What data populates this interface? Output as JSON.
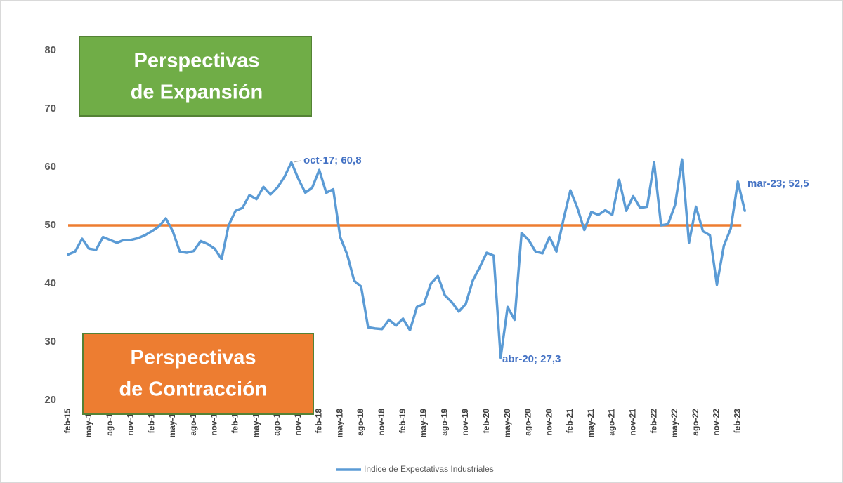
{
  "chart_data": {
    "type": "line",
    "categories": [
      "feb-15",
      null,
      null,
      "may-15",
      null,
      null,
      "ago-15",
      null,
      null,
      "nov-15",
      null,
      null,
      "feb-16",
      null,
      null,
      "may-16",
      null,
      null,
      "ago-16",
      null,
      null,
      "nov-16",
      null,
      null,
      "feb-17",
      null,
      null,
      "may-17",
      null,
      null,
      "ago-17",
      null,
      null,
      "nov-17",
      null,
      null,
      "feb-18",
      null,
      null,
      "may-18",
      null,
      null,
      "ago-18",
      null,
      null,
      "nov-18",
      null,
      null,
      "feb-19",
      null,
      null,
      "may-19",
      null,
      null,
      "ago-19",
      null,
      null,
      "nov-19",
      null,
      null,
      "feb-20",
      null,
      null,
      "may-20",
      null,
      null,
      "ago-20",
      null,
      null,
      "nov-20",
      null,
      null,
      "feb-21",
      null,
      null,
      "may-21",
      null,
      null,
      "ago-21",
      null,
      null,
      "nov-21",
      null,
      null,
      "feb-22",
      null,
      null,
      "may-22",
      null,
      null,
      "ago-22",
      null,
      null,
      "nov-22",
      null,
      null,
      "feb-23",
      null
    ],
    "series": [
      {
        "name": "Indice de Expectativas Industriales",
        "color": "#5B9BD5",
        "values": [
          45,
          45.5,
          47.7,
          46,
          45.8,
          48,
          47.5,
          47,
          47.5,
          47.5,
          47.8,
          48.3,
          49,
          49.8,
          51.2,
          49,
          45.5,
          45.3,
          45.6,
          47.3,
          46.8,
          46,
          44.2,
          50,
          52.5,
          53,
          55.2,
          54.5,
          56.6,
          55.3,
          56.5,
          58.3,
          60.8,
          58,
          55.6,
          56.5,
          59.5,
          55.6,
          56.2,
          48,
          45,
          40.5,
          39.5,
          32.5,
          32.3,
          32.2,
          33.8,
          32.8,
          34,
          32,
          36,
          36.5,
          40,
          41.3,
          38,
          36.8,
          35.2,
          36.5,
          40.5,
          42.8,
          45.3,
          44.8,
          27.3,
          36,
          33.8,
          48.7,
          47.5,
          45.5,
          45.2,
          48,
          45.5,
          51,
          56,
          53,
          49.2,
          52.3,
          51.8,
          52.6,
          51.8,
          57.8,
          52.5,
          55,
          53,
          53.2,
          60.8,
          50,
          50.2,
          53.5,
          61.3,
          47,
          53.2,
          49,
          48.3,
          39.8,
          46.5,
          49.5,
          57.5,
          52.5
        ]
      }
    ],
    "reference_line": {
      "value": 50,
      "color": "#ED7D31"
    },
    "ylim": [
      20,
      80
    ],
    "yticks": [
      20,
      30,
      40,
      50,
      60,
      70,
      80
    ],
    "grid": false,
    "annotations": [
      "oct-17; 60,8",
      "abr-20; 27,3",
      "mar-23; 52,5"
    ],
    "boxes": [
      {
        "lines": [
          "Perspectivas",
          "de Expansión"
        ],
        "color": "#70AD47"
      },
      {
        "lines": [
          "Perspectivas",
          "de Contracción"
        ],
        "color": "#ED7D31"
      }
    ],
    "legend": "bottom"
  }
}
